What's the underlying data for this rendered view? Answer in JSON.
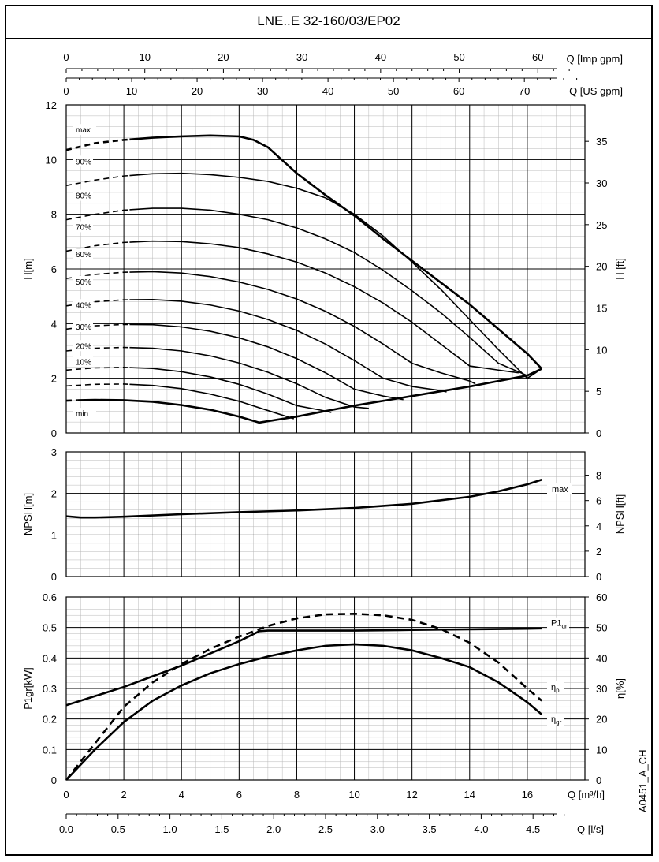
{
  "title": "LNE..E 32-160/03/EP02",
  "figure_id": "A0451_A_CH",
  "chart_data": [
    {
      "panel": "head",
      "type": "line",
      "xlabel": "Q [m³/h]",
      "xlim": [
        0,
        18
      ],
      "ylabel_left": "H[m]",
      "ylim": [
        0,
        12
      ],
      "yticks_left": [
        0,
        2,
        4,
        6,
        8,
        10,
        12
      ],
      "ylabel_right": "H [ft]",
      "yticks_right": [
        0,
        5,
        10,
        15,
        20,
        25,
        30,
        35
      ],
      "top_axes": [
        {
          "label": "Q [Imp gpm]",
          "ticks": [
            0,
            10,
            20,
            30,
            40,
            50,
            60
          ]
        },
        {
          "label": "Q [US gpm]",
          "ticks": [
            0,
            10,
            20,
            30,
            40,
            50,
            60,
            70
          ]
        }
      ],
      "grid": true,
      "series": [
        {
          "name": "max",
          "dashed_until": 2.2,
          "x": [
            0,
            1,
            2,
            3,
            4,
            5,
            6,
            6.5,
            7,
            8,
            9,
            10,
            11,
            12,
            13,
            14,
            15,
            16,
            16.5
          ],
          "y": [
            10.35,
            10.6,
            10.72,
            10.8,
            10.85,
            10.88,
            10.85,
            10.72,
            10.45,
            9.5,
            8.7,
            7.95,
            7.1,
            6.3,
            5.5,
            4.7,
            3.8,
            2.9,
            2.35
          ]
        },
        {
          "name": "90%",
          "dashed_until": 2.2,
          "x": [
            0,
            1,
            2,
            3,
            4,
            5,
            6,
            7,
            8,
            9,
            10,
            11,
            12,
            13,
            14,
            15,
            16,
            16.5
          ],
          "y": [
            9.05,
            9.25,
            9.4,
            9.48,
            9.5,
            9.45,
            9.35,
            9.2,
            8.95,
            8.6,
            8.0,
            7.2,
            6.25,
            5.25,
            4.15,
            3.05,
            2.0,
            2.35
          ]
        },
        {
          "name": "80%",
          "dashed_until": 2.2,
          "x": [
            0,
            1,
            2,
            3,
            4,
            5,
            6,
            7,
            8,
            9,
            10,
            11,
            12,
            13,
            14,
            15,
            16
          ],
          "y": [
            7.8,
            8.0,
            8.15,
            8.22,
            8.22,
            8.15,
            8.0,
            7.8,
            7.5,
            7.1,
            6.6,
            5.95,
            5.2,
            4.4,
            3.5,
            2.55,
            2.1
          ]
        },
        {
          "name": "70%",
          "dashed_until": 2.2,
          "x": [
            0,
            1,
            2,
            3,
            4,
            5,
            6,
            7,
            8,
            9,
            10,
            11,
            12,
            13,
            14,
            15,
            15.7
          ],
          "y": [
            6.65,
            6.85,
            6.97,
            7.02,
            7.0,
            6.92,
            6.78,
            6.55,
            6.25,
            5.85,
            5.35,
            4.75,
            4.05,
            3.25,
            2.45,
            2.3,
            2.2
          ]
        },
        {
          "name": "60%",
          "dashed_until": 2.2,
          "x": [
            0,
            1,
            2,
            3,
            4,
            5,
            6,
            7,
            8,
            9,
            10,
            11,
            12,
            13,
            14,
            14.2
          ],
          "y": [
            5.65,
            5.8,
            5.88,
            5.9,
            5.85,
            5.72,
            5.52,
            5.25,
            4.9,
            4.45,
            3.9,
            3.25,
            2.55,
            2.2,
            1.9,
            1.8
          ]
        },
        {
          "name": "50%",
          "dashed_until": 2.2,
          "x": [
            0,
            1,
            2,
            3,
            4,
            5,
            6,
            7,
            8,
            9,
            10,
            11,
            12,
            13,
            13.2
          ],
          "y": [
            4.65,
            4.8,
            4.87,
            4.88,
            4.82,
            4.68,
            4.46,
            4.15,
            3.75,
            3.25,
            2.65,
            2.0,
            1.7,
            1.55,
            1.5
          ]
        },
        {
          "name": "40%",
          "dashed_until": 2.2,
          "x": [
            0,
            1,
            2,
            3,
            4,
            5,
            6,
            7,
            8,
            9,
            10,
            11,
            11.7
          ],
          "y": [
            3.8,
            3.92,
            3.97,
            3.96,
            3.88,
            3.72,
            3.48,
            3.15,
            2.72,
            2.2,
            1.6,
            1.35,
            1.22
          ]
        },
        {
          "name": "30%",
          "dashed_until": 2.2,
          "x": [
            0,
            1,
            2,
            3,
            4,
            5,
            6,
            7,
            8,
            9,
            10,
            10.5
          ],
          "y": [
            3.0,
            3.1,
            3.13,
            3.1,
            3.0,
            2.82,
            2.56,
            2.22,
            1.8,
            1.3,
            0.95,
            0.9
          ]
        },
        {
          "name": "20%",
          "dashed_until": 2.2,
          "x": [
            0,
            1,
            2,
            3,
            4,
            5,
            6,
            7,
            8,
            9,
            9.2
          ],
          "y": [
            2.3,
            2.38,
            2.4,
            2.36,
            2.24,
            2.05,
            1.78,
            1.42,
            1.0,
            0.8,
            0.75
          ]
        },
        {
          "name": "10%",
          "dashed_until": 2.2,
          "x": [
            0,
            1,
            2,
            3,
            4,
            5,
            6,
            7,
            7.9
          ],
          "y": [
            1.72,
            1.78,
            1.79,
            1.74,
            1.62,
            1.42,
            1.16,
            0.82,
            0.52
          ]
        },
        {
          "name": "min",
          "dashed_until": 0.4,
          "x": [
            0,
            0.5,
            1,
            2,
            3,
            4,
            5,
            6,
            6.7
          ],
          "y": [
            1.18,
            1.2,
            1.21,
            1.2,
            1.14,
            1.02,
            0.85,
            0.6,
            0.38
          ]
        },
        {
          "name": "envelope",
          "x": [
            6.7,
            8,
            10,
            12,
            14,
            16,
            16.5
          ],
          "y": [
            0.38,
            0.6,
            1.0,
            1.35,
            1.7,
            2.1,
            2.35
          ]
        }
      ]
    },
    {
      "panel": "npsh",
      "type": "line",
      "xlim": [
        0,
        18
      ],
      "ylabel_left": "NPSH[m]",
      "ylim": [
        0,
        3
      ],
      "yticks_left": [
        0,
        1,
        2,
        3
      ],
      "ylabel_right": "NPSH[ft]",
      "yticks_right": [
        0,
        2,
        4,
        6,
        8
      ],
      "grid": true,
      "series": [
        {
          "name": "max",
          "x": [
            0,
            0.5,
            1,
            2,
            4,
            6,
            8,
            10,
            12,
            14,
            15,
            16,
            16.5
          ],
          "y": [
            1.45,
            1.42,
            1.42,
            1.44,
            1.5,
            1.55,
            1.59,
            1.65,
            1.75,
            1.92,
            2.05,
            2.22,
            2.33
          ]
        }
      ]
    },
    {
      "panel": "power_efficiency",
      "type": "line",
      "xlabel": "Q [m³/h]",
      "xlim": [
        0,
        18
      ],
      "xticks": [
        0,
        2,
        4,
        6,
        8,
        10,
        12,
        14,
        16
      ],
      "ylabel_left": "P1gr[kW]",
      "ylim": [
        0,
        0.6
      ],
      "yticks_left": [
        0.0,
        0.1,
        0.2,
        0.3,
        0.4,
        0.5,
        0.6
      ],
      "ylabel_right": "η[%]",
      "yticks_right": [
        0,
        10,
        20,
        30,
        40,
        50,
        60
      ],
      "bottom_axis": {
        "label": "Q [l/s]",
        "ticks": [
          "0.0",
          "0.5",
          "1.0",
          "1.5",
          "2.0",
          "2.5",
          "3.0",
          "3.5",
          "4.0",
          "4.5"
        ]
      },
      "grid": true,
      "series": [
        {
          "name": "P1gr",
          "label_main": "P1",
          "label_sub": "gr",
          "axis": "left",
          "style": "solid",
          "x": [
            0,
            1,
            2,
            3,
            4,
            5,
            6,
            6.7,
            7,
            8,
            10,
            12,
            14,
            16,
            16.5
          ],
          "y": [
            0.245,
            0.275,
            0.305,
            0.34,
            0.375,
            0.415,
            0.455,
            0.488,
            0.49,
            0.49,
            0.49,
            0.492,
            0.494,
            0.496,
            0.497
          ]
        },
        {
          "name": "ηp",
          "label_main": "η",
          "label_sub": "p",
          "axis": "right",
          "style": "dashed",
          "x": [
            0,
            1,
            2,
            3,
            4,
            5,
            6,
            7,
            8,
            9,
            10,
            11,
            12,
            13,
            14,
            15,
            16,
            16.5
          ],
          "y": [
            0,
            12,
            24,
            32,
            38,
            43,
            47,
            50.5,
            53,
            54.3,
            54.5,
            54,
            52.5,
            49.5,
            45,
            38.5,
            30,
            26
          ]
        },
        {
          "name": "ηgr",
          "label_main": "η",
          "label_sub": "gr",
          "axis": "right",
          "style": "solid",
          "x": [
            0,
            1,
            2,
            3,
            4,
            5,
            6,
            7,
            8,
            9,
            10,
            11,
            12,
            13,
            14,
            15,
            16,
            16.5
          ],
          "y": [
            0,
            10,
            19,
            26,
            31,
            35,
            38,
            40.5,
            42.5,
            44,
            44.5,
            44,
            42.5,
            40,
            37,
            32,
            25.5,
            21.5
          ]
        }
      ]
    }
  ]
}
